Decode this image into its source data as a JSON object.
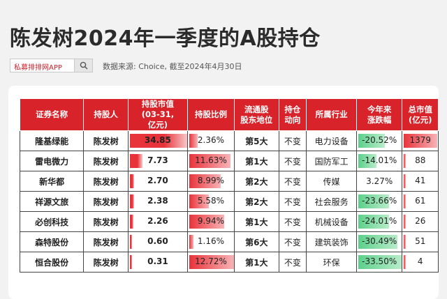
{
  "title": "陈发树2024年一季度的A股持仓",
  "search": {
    "label": "私募排排网APP"
  },
  "source": "数据来源: Choice, 截至2024年4月30日",
  "colors": {
    "header_red": "#d8232a",
    "bar_red": "#e8333a",
    "bar_green": "#5cd08a"
  },
  "table": {
    "headers": [
      "证券名称",
      "持股人",
      "持股市值\n(03-31,\n亿元)",
      "持股比例",
      "流通股\n股东地位",
      "持仓\n动向",
      "所属行业",
      "今年来\n涨跌幅",
      "总市值\n(亿元)"
    ],
    "rows": [
      {
        "name": "隆基绿能",
        "holder": "陈发树",
        "value": "34.85",
        "value_num": 34.85,
        "ratio": "2.36%",
        "ratio_num": 2.36,
        "rank": "第5大",
        "trend": "不变",
        "industry": "电力设备",
        "change": "-20.52%",
        "change_num": -20.52,
        "cap": "1379",
        "cap_num": 1379
      },
      {
        "name": "雷电微力",
        "holder": "陈发树",
        "value": "7.73",
        "value_num": 7.73,
        "ratio": "11.63%",
        "ratio_num": 11.63,
        "rank": "第1大",
        "trend": "不变",
        "industry": "国防军工",
        "change": "-14.01%",
        "change_num": -14.01,
        "cap": "88",
        "cap_num": 88
      },
      {
        "name": "新华都",
        "holder": "陈发树",
        "value": "2.70",
        "value_num": 2.7,
        "ratio": "8.99%",
        "ratio_num": 8.99,
        "rank": "第2大",
        "trend": "不变",
        "industry": "传媒",
        "change": "3.27%",
        "change_num": 3.27,
        "cap": "41",
        "cap_num": 41
      },
      {
        "name": "祥源文旅",
        "holder": "陈发树",
        "value": "2.38",
        "value_num": 2.38,
        "ratio": "5.58%",
        "ratio_num": 5.58,
        "rank": "第2大",
        "trend": "不变",
        "industry": "社会服务",
        "change": "-23.66%",
        "change_num": -23.66,
        "cap": "61",
        "cap_num": 61
      },
      {
        "name": "必创科技",
        "holder": "陈发树",
        "value": "2.26",
        "value_num": 2.26,
        "ratio": "9.94%",
        "ratio_num": 9.94,
        "rank": "第1大",
        "trend": "不变",
        "industry": "机械设备",
        "change": "-24.01%",
        "change_num": -24.01,
        "cap": "26",
        "cap_num": 26
      },
      {
        "name": "森特股份",
        "holder": "陈发树",
        "value": "0.60",
        "value_num": 0.6,
        "ratio": "1.16%",
        "ratio_num": 1.16,
        "rank": "第6大",
        "trend": "不变",
        "industry": "建筑装饰",
        "change": "-30.49%",
        "change_num": -30.49,
        "cap": "51",
        "cap_num": 51
      },
      {
        "name": "恒合股份",
        "holder": "陈发树",
        "value": "0.31",
        "value_num": 0.31,
        "ratio": "12.72%",
        "ratio_num": 12.72,
        "rank": "第1大",
        "trend": "不变",
        "industry": "环保",
        "change": "-33.50%",
        "change_num": -33.5,
        "cap": "4",
        "cap_num": 4
      }
    ]
  }
}
